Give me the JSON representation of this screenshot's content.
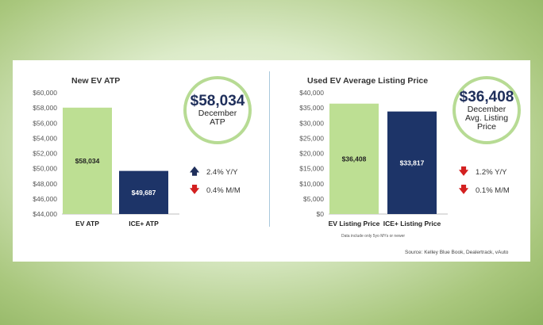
{
  "left_panel": {
    "callout": {
      "value": "$58,034",
      "text": "December ATP"
    },
    "changes": [
      {
        "direction": "up",
        "color": "#1f2f5b",
        "text": "2.4% Y/Y"
      },
      {
        "direction": "down",
        "color": "#d32020",
        "text": "0.4% M/M"
      }
    ]
  },
  "right_panel": {
    "callout": {
      "value": "$36,408",
      "text": "December Avg. Listing Price"
    },
    "changes": [
      {
        "direction": "down",
        "color": "#d32020",
        "text": "1.2% Y/Y"
      },
      {
        "direction": "down",
        "color": "#d32020",
        "text": "0.1% M/M"
      }
    ],
    "footnote": "Data include only 5yo MYs or newer"
  },
  "source": "Source: Kelley Blue Book, Dealertrack, vAuto",
  "colors": {
    "ev": "#bddf93",
    "ice": "#1d3468",
    "circle": "#b7db94"
  },
  "chart_data": [
    {
      "type": "bar",
      "title": "New EV ATP",
      "categories": [
        "EV ATP",
        "ICE+ ATP"
      ],
      "values": [
        58034,
        49687
      ],
      "value_labels": [
        "$58,034",
        "$49,687"
      ],
      "ylim": [
        44000,
        60000
      ],
      "yticks": [
        44000,
        46000,
        48000,
        50000,
        52000,
        54000,
        56000,
        58000,
        60000
      ],
      "ytick_labels": [
        "$44,000",
        "$46,000",
        "$48,000",
        "$50,000",
        "$52,000",
        "$54,000",
        "$56,000",
        "$58,000",
        "$60,000"
      ],
      "grid": false,
      "xlabel": "",
      "ylabel": ""
    },
    {
      "type": "bar",
      "title": "Used EV Average Listing Price",
      "categories": [
        "EV Listing Price",
        "ICE+ Listing Price"
      ],
      "values": [
        36408,
        33817
      ],
      "value_labels": [
        "$36,408",
        "$33,817"
      ],
      "ylim": [
        0,
        40000
      ],
      "yticks": [
        0,
        5000,
        10000,
        15000,
        20000,
        25000,
        30000,
        35000,
        40000
      ],
      "ytick_labels": [
        "$0",
        "$5,000",
        "$10,000",
        "$15,000",
        "$20,000",
        "$25,000",
        "$30,000",
        "$35,000",
        "$40,000"
      ],
      "grid": false,
      "xlabel": "",
      "ylabel": ""
    }
  ]
}
